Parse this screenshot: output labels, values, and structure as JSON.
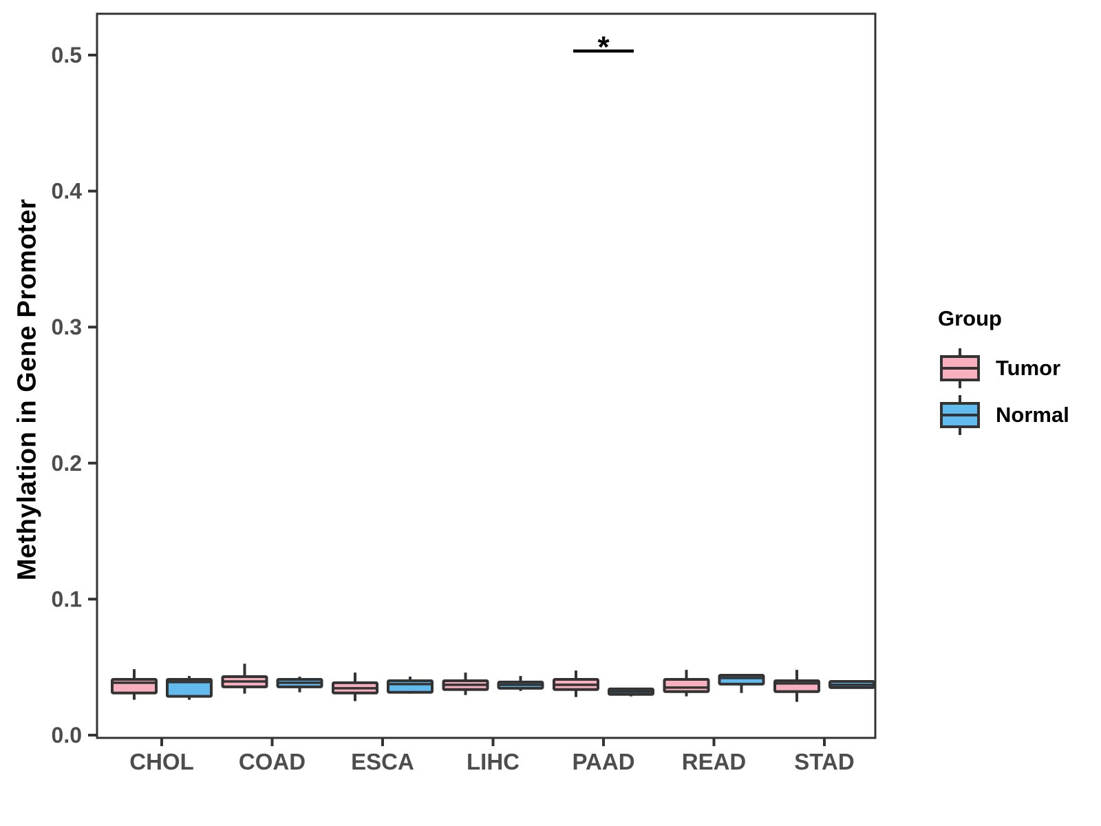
{
  "chart_data": {
    "type": "boxplot",
    "ylabel": "Methylation in Gene Promoter",
    "ylim": [
      0.0,
      0.53
    ],
    "yticks": [
      0.0,
      0.1,
      0.2,
      0.3,
      0.4,
      0.5
    ],
    "ytick_labels": [
      "0.0",
      "0.1",
      "0.2",
      "0.3",
      "0.4",
      "0.5"
    ],
    "categories": [
      "CHOL",
      "COAD",
      "ESCA",
      "LIHC",
      "PAAD",
      "READ",
      "STAD"
    ],
    "grid": "off",
    "legend_position": "right",
    "legend": {
      "title": "Group"
    },
    "groups": [
      {
        "name": "Tumor",
        "color": "#F8B0BF"
      },
      {
        "name": "Normal",
        "color": "#62BBEF"
      }
    ],
    "series": [
      {
        "name": "Tumor",
        "boxes": [
          {
            "category": "CHOL",
            "low": 0.026,
            "q1": 0.031,
            "median": 0.0385,
            "q3": 0.041,
            "high": 0.0485
          },
          {
            "category": "COAD",
            "low": 0.0305,
            "q1": 0.0355,
            "median": 0.0395,
            "q3": 0.043,
            "high": 0.0525
          },
          {
            "category": "ESCA",
            "low": 0.025,
            "q1": 0.031,
            "median": 0.0345,
            "q3": 0.0385,
            "high": 0.046
          },
          {
            "category": "LIHC",
            "low": 0.0295,
            "q1": 0.0335,
            "median": 0.037,
            "q3": 0.04,
            "high": 0.046
          },
          {
            "category": "PAAD",
            "low": 0.028,
            "q1": 0.0335,
            "median": 0.037,
            "q3": 0.041,
            "high": 0.0475
          },
          {
            "category": "READ",
            "low": 0.0285,
            "q1": 0.032,
            "median": 0.035,
            "q3": 0.041,
            "high": 0.048
          },
          {
            "category": "STAD",
            "low": 0.0245,
            "q1": 0.032,
            "median": 0.038,
            "q3": 0.04,
            "high": 0.048
          }
        ]
      },
      {
        "name": "Normal",
        "boxes": [
          {
            "category": "CHOL",
            "low": 0.026,
            "q1": 0.0285,
            "median": 0.039,
            "q3": 0.041,
            "high": 0.0435
          },
          {
            "category": "COAD",
            "low": 0.0315,
            "q1": 0.0355,
            "median": 0.0385,
            "q3": 0.041,
            "high": 0.043
          },
          {
            "category": "ESCA",
            "low": 0.0305,
            "q1": 0.0315,
            "median": 0.0375,
            "q3": 0.04,
            "high": 0.043
          },
          {
            "category": "LIHC",
            "low": 0.0325,
            "q1": 0.0345,
            "median": 0.037,
            "q3": 0.039,
            "high": 0.0435
          },
          {
            "category": "PAAD",
            "low": 0.0285,
            "q1": 0.03,
            "median": 0.032,
            "q3": 0.034,
            "high": 0.034
          },
          {
            "category": "READ",
            "low": 0.031,
            "q1": 0.0375,
            "median": 0.042,
            "q3": 0.044,
            "high": 0.044
          },
          {
            "category": "STAD",
            "low": 0.035,
            "q1": 0.035,
            "median": 0.037,
            "q3": 0.0395,
            "high": 0.0395
          }
        ]
      }
    ],
    "significance": [
      {
        "category": "PAAD",
        "label": "*",
        "bar_y": 0.503
      }
    ],
    "colors": {
      "box_border": "#333333",
      "axis_border": "#333333",
      "tick_text": "#4d4d4d",
      "significance": "#000000"
    }
  }
}
